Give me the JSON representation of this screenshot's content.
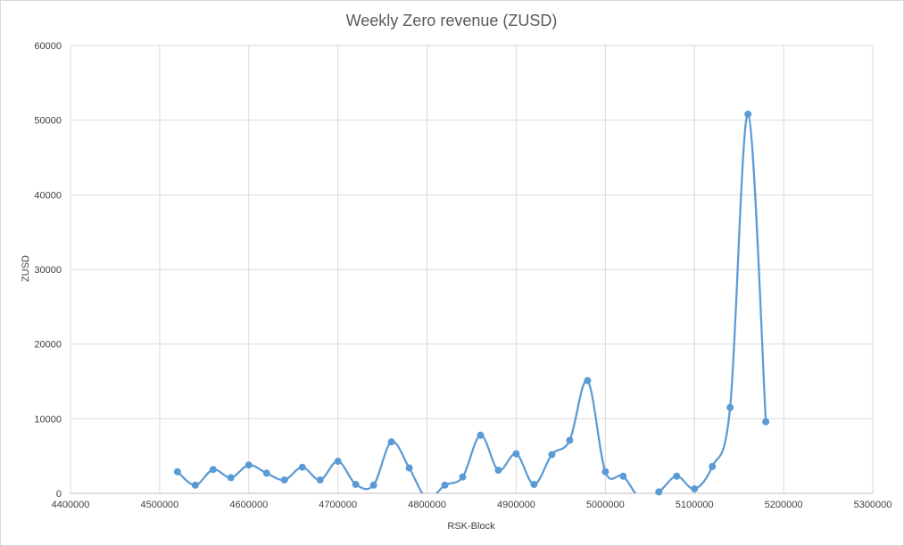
{
  "chart_data": {
    "type": "line",
    "title": "Weekly Zero revenue (ZUSD)",
    "xlabel": "RSK-Block",
    "ylabel": "ZUSD",
    "xlim": [
      4400000,
      5300000
    ],
    "ylim": [
      0,
      60000
    ],
    "x_ticks": [
      4400000,
      4500000,
      4600000,
      4700000,
      4800000,
      4900000,
      5000000,
      5100000,
      5200000,
      5300000
    ],
    "y_ticks": [
      0,
      10000,
      20000,
      30000,
      40000,
      50000,
      60000
    ],
    "grid": true,
    "smooth": true,
    "series": [
      {
        "color": "#5b9bd5",
        "x": [
          4520000,
          4540000,
          4560000,
          4580000,
          4600000,
          4620000,
          4640000,
          4660000,
          4680000,
          4700000,
          4720000,
          4740000,
          4760000,
          4780000,
          4800000,
          4820000,
          4840000,
          4860000,
          4880000,
          4900000,
          4920000,
          4940000,
          4960000,
          4980000,
          5000000,
          5020000,
          5040000,
          5060000,
          5080000,
          5100000,
          5120000,
          5140000,
          5160000,
          5180000
        ],
        "y": [
          2900,
          1100,
          3200,
          2100,
          3800,
          2700,
          1800,
          3500,
          1800,
          4300,
          1200,
          1100,
          6900,
          3400,
          -700,
          1100,
          2200,
          7800,
          3100,
          5300,
          1200,
          5200,
          7100,
          15100,
          2900,
          2300,
          -800,
          200,
          2300,
          600,
          3600,
          11500,
          50800,
          9600
        ]
      }
    ]
  }
}
